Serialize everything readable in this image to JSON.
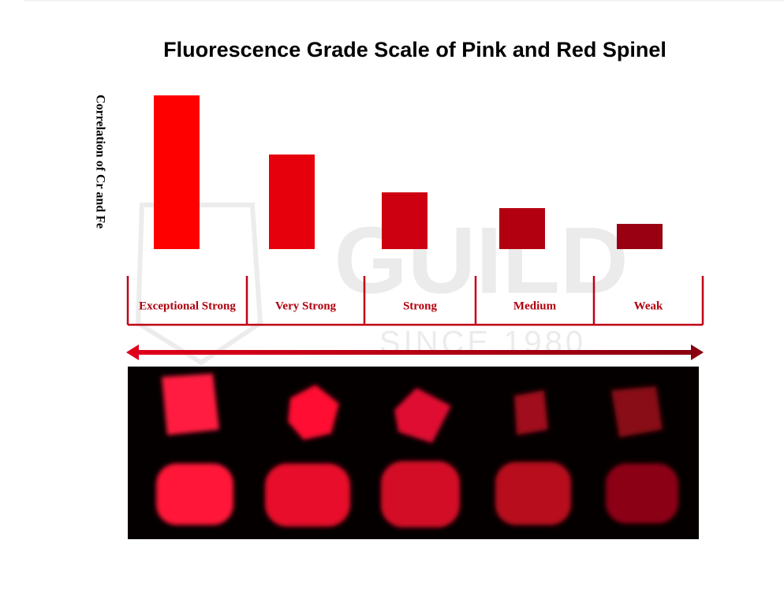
{
  "chart_data": {
    "type": "bar",
    "title": "Fluorescence Grade Scale of Pink and Red Spinel",
    "y_label": "Correlation of Cr and Fe",
    "categories": [
      "Exceptional Strong",
      "Very Strong",
      "Strong",
      "Medium",
      "Weak"
    ],
    "values": [
      195,
      120,
      72,
      52,
      32
    ],
    "colors": [
      "#ff0000",
      "#e6000c",
      "#cc0010",
      "#b30010",
      "#990012"
    ],
    "watermark": [
      "GUILD",
      "SINCE 1980"
    ]
  }
}
